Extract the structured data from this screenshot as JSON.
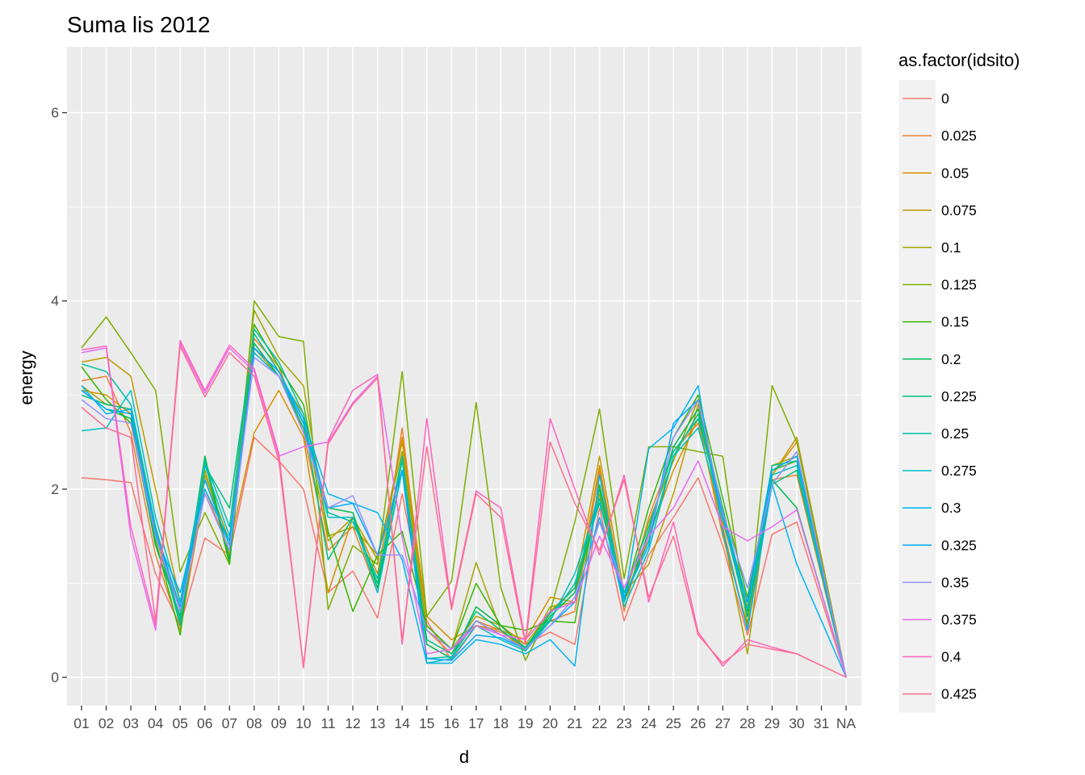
{
  "chart_data": {
    "type": "line",
    "title": "Suma lis 2012",
    "xlabel": "d",
    "ylabel": "energy",
    "ylim": [
      -0.3,
      6.7
    ],
    "yticks": [
      0,
      2,
      4,
      6
    ],
    "grid": true,
    "legend": {
      "title": "as.factor(idsito)",
      "position": "right"
    },
    "categories": [
      "01",
      "02",
      "03",
      "04",
      "05",
      "06",
      "07",
      "08",
      "09",
      "10",
      "11",
      "12",
      "13",
      "14",
      "15",
      "16",
      "17",
      "18",
      "19",
      "20",
      "21",
      "22",
      "23",
      "24",
      "25",
      "26",
      "27",
      "28",
      "29",
      "30",
      "31",
      "NA"
    ],
    "series": [
      {
        "name": "0",
        "color": "#F8766D",
        "values": [
          2.12,
          2.1,
          2.07,
          1.1,
          0.55,
          1.48,
          1.3,
          2.55,
          2.3,
          2.0,
          0.9,
          1.13,
          0.63,
          1.95,
          0.6,
          0.18,
          0.55,
          0.48,
          0.35,
          0.48,
          0.35,
          1.8,
          0.6,
          1.3,
          1.7,
          2.12,
          1.4,
          0.45,
          1.52,
          1.65,
          null,
          0.0
        ]
      },
      {
        "name": "0.025",
        "color": "#EA8331",
        "values": [
          3.15,
          3.2,
          2.6,
          1.3,
          0.5,
          2.0,
          1.35,
          3.6,
          3.3,
          2.6,
          1.35,
          1.6,
          0.9,
          2.65,
          0.5,
          0.25,
          0.6,
          0.5,
          0.3,
          0.6,
          0.7,
          2.2,
          0.7,
          1.7,
          2.4,
          2.7,
          1.6,
          0.5,
          2.1,
          2.15,
          null,
          0.0
        ]
      },
      {
        "name": "0.05",
        "color": "#D89000",
        "values": [
          3.05,
          3.0,
          2.8,
          1.5,
          0.6,
          2.1,
          1.4,
          2.6,
          3.05,
          2.55,
          0.9,
          1.7,
          1.1,
          2.55,
          0.65,
          0.4,
          0.55,
          0.5,
          0.4,
          0.85,
          0.8,
          2.25,
          0.8,
          1.5,
          2.2,
          2.75,
          1.5,
          0.55,
          2.15,
          2.5,
          null,
          0.0
        ]
      },
      {
        "name": "0.075",
        "color": "#C09B00",
        "values": [
          3.35,
          3.4,
          3.2,
          2.0,
          0.8,
          2.2,
          1.3,
          3.5,
          3.2,
          2.8,
          1.45,
          1.7,
          1.25,
          2.5,
          0.55,
          0.3,
          0.65,
          0.55,
          0.35,
          0.7,
          0.95,
          2.35,
          0.9,
          1.2,
          1.95,
          2.9,
          1.65,
          0.75,
          2.15,
          2.55,
          null,
          0.0
        ]
      },
      {
        "name": "0.1",
        "color": "#A3A500",
        "values": [
          3.1,
          2.9,
          2.85,
          1.6,
          0.7,
          2.15,
          1.45,
          3.9,
          3.4,
          3.1,
          1.5,
          1.6,
          1.3,
          2.4,
          0.5,
          0.3,
          1.22,
          0.5,
          0.28,
          0.75,
          0.8,
          1.95,
          0.85,
          1.65,
          2.3,
          2.95,
          1.55,
          0.25,
          2.25,
          2.35,
          null,
          0.0
        ]
      },
      {
        "name": "0.125",
        "color": "#7CAE00",
        "values": [
          3.5,
          3.83,
          3.45,
          3.05,
          1.12,
          1.75,
          1.2,
          4.0,
          3.62,
          3.57,
          0.72,
          1.4,
          1.2,
          3.25,
          0.65,
          1.02,
          2.92,
          0.95,
          0.18,
          0.7,
          1.65,
          2.85,
          1.05,
          2.45,
          2.45,
          2.4,
          2.35,
          0.55,
          3.1,
          2.5,
          null,
          0.0
        ]
      },
      {
        "name": "0.15",
        "color": "#39B600",
        "values": [
          3.3,
          2.95,
          2.7,
          1.45,
          0.45,
          2.3,
          1.2,
          3.75,
          3.3,
          2.9,
          1.55,
          0.7,
          1.3,
          1.55,
          0.55,
          0.3,
          1.0,
          0.55,
          0.5,
          0.6,
          0.58,
          2.05,
          0.85,
          1.8,
          2.55,
          3.0,
          1.9,
          0.85,
          2.2,
          2.3,
          null,
          0.0
        ]
      },
      {
        "name": "0.2",
        "color": "#00BB4E",
        "values": [
          3.05,
          2.85,
          2.75,
          1.4,
          0.65,
          2.35,
          1.25,
          3.55,
          3.2,
          2.65,
          1.8,
          1.75,
          0.95,
          2.2,
          0.35,
          0.2,
          0.75,
          0.55,
          0.3,
          0.65,
          0.9,
          1.9,
          0.8,
          1.55,
          2.45,
          2.85,
          1.8,
          0.7,
          2.1,
          1.8,
          null,
          0.0
        ]
      },
      {
        "name": "0.225",
        "color": "#00BF7D",
        "values": [
          3.0,
          2.9,
          2.85,
          1.55,
          0.55,
          2.25,
          1.8,
          3.65,
          3.25,
          2.75,
          1.25,
          1.7,
          1.0,
          2.3,
          0.4,
          0.25,
          0.7,
          0.5,
          0.32,
          0.68,
          0.95,
          2.0,
          0.85,
          1.45,
          2.35,
          2.8,
          1.7,
          0.65,
          2.05,
          2.2,
          null,
          0.0
        ]
      },
      {
        "name": "0.25",
        "color": "#00C1A3",
        "values": [
          3.33,
          3.25,
          2.9,
          1.6,
          0.6,
          2.3,
          1.6,
          3.7,
          3.35,
          2.8,
          1.75,
          1.65,
          1.05,
          2.35,
          0.2,
          0.22,
          0.6,
          0.45,
          0.3,
          0.62,
          1.0,
          1.85,
          0.9,
          1.6,
          2.4,
          2.75,
          1.75,
          0.8,
          2.25,
          2.3,
          null,
          0.0
        ]
      },
      {
        "name": "0.275",
        "color": "#00BFC4",
        "values": [
          2.62,
          2.65,
          3.05,
          1.7,
          0.8,
          2.25,
          1.5,
          3.45,
          3.2,
          2.7,
          1.7,
          1.7,
          0.9,
          2.2,
          0.15,
          0.2,
          0.55,
          0.4,
          0.28,
          0.6,
          1.1,
          1.9,
          0.75,
          1.35,
          2.35,
          2.65,
          1.7,
          0.72,
          2.15,
          2.25,
          null,
          0.0
        ]
      },
      {
        "name": "0.3",
        "color": "#00B4F0",
        "values": [
          3.1,
          2.8,
          2.85,
          1.5,
          0.9,
          2.0,
          1.45,
          3.5,
          3.25,
          2.75,
          1.95,
          1.85,
          1.75,
          1.25,
          0.15,
          0.15,
          0.4,
          0.35,
          0.25,
          0.4,
          0.12,
          2.15,
          0.8,
          2.43,
          2.65,
          3.1,
          1.55,
          0.5,
          2.05,
          1.2,
          null,
          0.0
        ]
      },
      {
        "name": "0.325",
        "color": "#00A9FF",
        "values": [
          3.05,
          2.85,
          2.8,
          1.55,
          0.75,
          2.1,
          1.4,
          3.5,
          3.25,
          2.7,
          1.8,
          1.85,
          1.3,
          2.2,
          0.2,
          0.18,
          0.45,
          0.42,
          0.3,
          0.55,
          0.8,
          1.7,
          0.85,
          1.4,
          2.7,
          2.95,
          1.7,
          0.8,
          2.2,
          2.35,
          null,
          0.0
        ]
      },
      {
        "name": "0.35",
        "color": "#9590FF",
        "values": [
          2.95,
          2.75,
          2.7,
          1.5,
          0.7,
          1.95,
          1.35,
          3.4,
          3.2,
          2.6,
          1.8,
          1.93,
          1.3,
          1.3,
          0.5,
          0.3,
          0.6,
          0.45,
          0.3,
          0.55,
          0.85,
          1.65,
          0.95,
          1.5,
          2.55,
          2.95,
          1.75,
          0.95,
          2.05,
          2.4,
          null,
          0.0
        ]
      },
      {
        "name": "0.375",
        "color": "#E76BF3",
        "values": [
          3.45,
          3.5,
          1.5,
          0.5,
          3.55,
          3.02,
          3.5,
          3.25,
          2.35,
          2.45,
          2.5,
          2.92,
          3.2,
          1.48,
          0.25,
          0.3,
          0.55,
          0.45,
          0.4,
          0.7,
          0.8,
          1.5,
          0.95,
          1.5,
          1.8,
          2.3,
          1.6,
          1.45,
          1.6,
          1.78,
          null,
          0.0
        ]
      },
      {
        "name": "0.4",
        "color": "#FF62BC",
        "values": [
          3.48,
          3.52,
          1.6,
          0.55,
          3.58,
          3.05,
          3.53,
          3.28,
          2.38,
          0.1,
          2.52,
          3.05,
          3.22,
          0.35,
          2.75,
          0.75,
          1.98,
          1.8,
          0.38,
          2.75,
          2.0,
          1.3,
          2.15,
          0.8,
          1.65,
          0.48,
          0.12,
          0.4,
          0.32,
          0.25,
          null,
          0.0
        ]
      },
      {
        "name": "0.425",
        "color": "#FF6C91",
        "values": [
          2.87,
          2.65,
          2.55,
          0.6,
          3.52,
          2.98,
          3.45,
          3.2,
          2.3,
          0.12,
          2.48,
          2.9,
          3.18,
          0.4,
          2.45,
          0.72,
          1.95,
          1.7,
          0.35,
          2.5,
          1.85,
          1.35,
          2.1,
          0.85,
          1.5,
          0.45,
          0.15,
          0.35,
          0.3,
          0.25,
          null,
          0.0
        ]
      }
    ]
  }
}
